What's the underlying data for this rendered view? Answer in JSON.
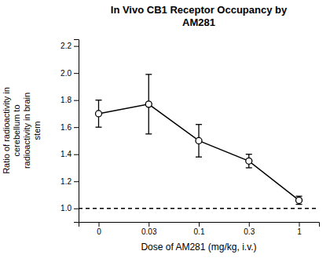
{
  "chart_data": {
    "type": "line",
    "title": "In Vivo CB1 Receptor Occupancy by\nAM281",
    "x_label": "Dose of AM281 (mg/kg, i.v.)",
    "y_label": "Ratio of radioactivity in\ncerebellum to\nradioactivity in brain\nstem",
    "categories": [
      "0",
      "0.03",
      "0.1",
      "0.3",
      "1"
    ],
    "values": [
      1.7,
      1.77,
      1.5,
      1.35,
      1.06
    ],
    "errors": [
      0.1,
      0.22,
      0.12,
      0.05,
      0.03
    ],
    "hline": 1.0,
    "color": "#000000",
    "marker": "circle",
    "line_style": "solid",
    "ylim": [
      0.9,
      2.25
    ],
    "yticks": [
      {
        "value": 1.0,
        "label": "1.0"
      },
      1.2,
      1.4,
      1.6,
      1.8,
      {
        "value": 2.0,
        "label": "2.0"
      },
      2.2
    ],
    "grid": false
  }
}
